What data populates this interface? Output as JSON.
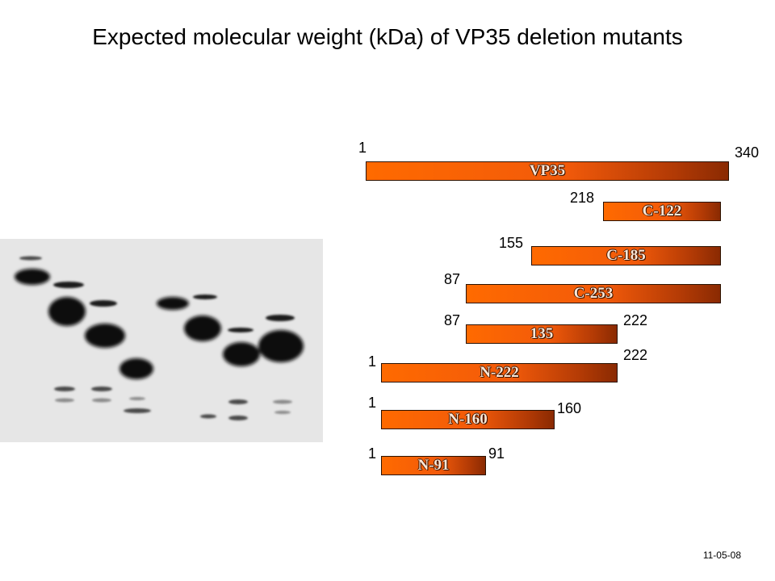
{
  "title": "Expected molecular weight (kDa) of VP35 deletion mutants",
  "date": "11-05-08",
  "constructs": [
    {
      "label": "VP35",
      "start_label": "1",
      "end_label": "340"
    },
    {
      "label": "C-122",
      "start_label": "218",
      "end_label": ""
    },
    {
      "label": "C-185",
      "start_label": "155",
      "end_label": ""
    },
    {
      "label": "C-253",
      "start_label": "87",
      "end_label": ""
    },
    {
      "label": "135",
      "start_label": "87",
      "end_label": "222"
    },
    {
      "label": "N-222",
      "start_label": "1",
      "end_label": "222"
    },
    {
      "label": "N-160",
      "start_label": "1",
      "end_label": "160"
    },
    {
      "label": "N-91",
      "start_label": "1",
      "end_label": "91"
    }
  ]
}
